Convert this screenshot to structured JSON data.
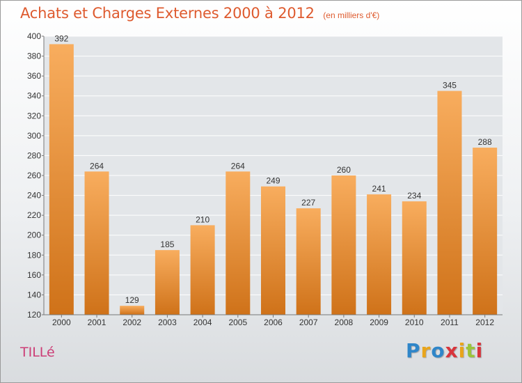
{
  "title": "Achats et Charges Externes 2000 à 2012",
  "unit_note": "(en milliers d'€)",
  "commune": "TILLé",
  "logo": {
    "letters": [
      "P",
      "r",
      "o",
      "x",
      "i",
      "t",
      "i"
    ],
    "colors": [
      "#2f86c9",
      "#e9a51b",
      "#2f86c9",
      "#d8353c",
      "#e9a51b",
      "#9bc43a",
      "#d8353c"
    ]
  },
  "colors": {
    "bar_light": "#f8ad5e",
    "bar_dark": "#cf7219",
    "title": "#de5a2e",
    "commune": "#cc3d76"
  },
  "chart_data": {
    "type": "bar",
    "categories": [
      "2000",
      "2001",
      "2002",
      "2003",
      "2004",
      "2005",
      "2006",
      "2007",
      "2008",
      "2009",
      "2010",
      "2011",
      "2012"
    ],
    "values": [
      392,
      264,
      129,
      185,
      210,
      264,
      249,
      227,
      260,
      241,
      234,
      345,
      288
    ],
    "title": "Achats et Charges Externes 2000 à 2012",
    "unit": "(en milliers d'€)",
    "ylim": [
      120,
      400
    ],
    "yticks": [
      120,
      140,
      160,
      180,
      200,
      220,
      240,
      260,
      280,
      300,
      320,
      340,
      360,
      380,
      400
    ],
    "grid": true,
    "data_labels": true
  }
}
